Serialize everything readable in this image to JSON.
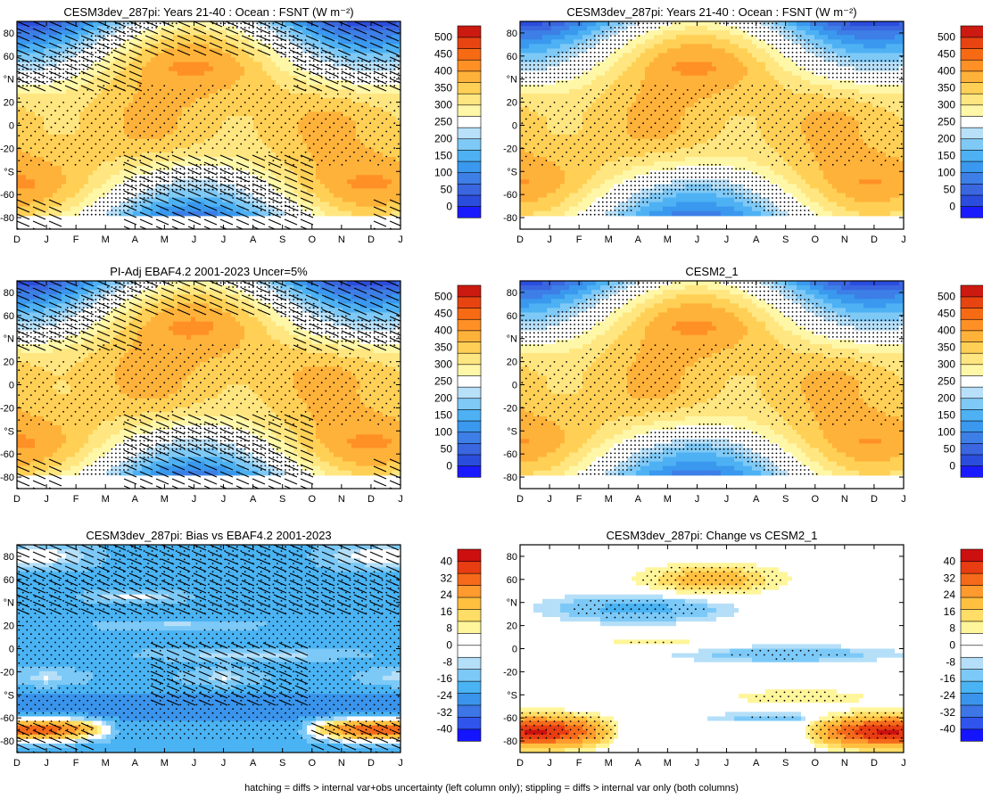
{
  "footer": "hatching = diffs > internal var+obs uncertainty (left column only); stippling = diffs > internal var only (both columns)",
  "chart_data": [
    {
      "type": "heatmap",
      "title": "CESM3dev_287pi: Years 21-40 : Ocean : FSNT (W m⁻²)",
      "x_labels": [
        "D",
        "J",
        "F",
        "M",
        "A",
        "M",
        "J",
        "J",
        "A",
        "S",
        "O",
        "N",
        "D",
        "J"
      ],
      "y_labels": [
        "80",
        "60",
        "°N",
        "20",
        "0",
        "-20",
        "°S",
        "-60",
        "-80"
      ],
      "colorbar_ticks": [
        "500",
        "450",
        "400",
        "350",
        "300",
        "250",
        "200",
        "150",
        "100",
        "50",
        "0"
      ],
      "colorbar_range": [
        0,
        525
      ],
      "field": "fsnt",
      "hatching": true,
      "stippling": true
    },
    {
      "type": "heatmap",
      "title": "CESM3dev_287pi: Years 21-40 : Ocean : FSNT (W m⁻²)",
      "x_labels": [
        "D",
        "J",
        "F",
        "M",
        "A",
        "M",
        "J",
        "J",
        "A",
        "S",
        "O",
        "N",
        "D",
        "J"
      ],
      "y_labels": [
        "80",
        "60",
        "°N",
        "20",
        "0",
        "-20",
        "°S",
        "-60",
        "-80"
      ],
      "colorbar_ticks": [
        "500",
        "450",
        "400",
        "350",
        "300",
        "250",
        "200",
        "150",
        "100",
        "50",
        "0"
      ],
      "colorbar_range": [
        0,
        525
      ],
      "field": "fsnt",
      "hatching": false,
      "stippling": true
    },
    {
      "type": "heatmap",
      "title": "PI-Adj EBAF4.2 2001-2023 Uncer=5%",
      "x_labels": [
        "D",
        "J",
        "F",
        "M",
        "A",
        "M",
        "J",
        "J",
        "A",
        "S",
        "O",
        "N",
        "D",
        "J"
      ],
      "y_labels": [
        "80",
        "60",
        "°N",
        "20",
        "0",
        "-20",
        "°S",
        "-60",
        "-80"
      ],
      "colorbar_ticks": [
        "500",
        "450",
        "400",
        "350",
        "300",
        "250",
        "200",
        "150",
        "100",
        "50",
        "0"
      ],
      "colorbar_range": [
        0,
        525
      ],
      "field": "fsnt",
      "hatching": true,
      "stippling": true
    },
    {
      "type": "heatmap",
      "title": "CESM2_1",
      "x_labels": [
        "D",
        "J",
        "F",
        "M",
        "A",
        "M",
        "J",
        "J",
        "A",
        "S",
        "O",
        "N",
        "D",
        "J"
      ],
      "y_labels": [
        "80",
        "60",
        "°N",
        "20",
        "0",
        "-20",
        "°S",
        "-60",
        "-80"
      ],
      "colorbar_ticks": [
        "500",
        "450",
        "400",
        "350",
        "300",
        "250",
        "200",
        "150",
        "100",
        "50",
        "0"
      ],
      "colorbar_range": [
        0,
        525
      ],
      "field": "fsnt",
      "hatching": false,
      "stippling": true
    },
    {
      "type": "heatmap",
      "title": "CESM3dev_287pi: Bias vs EBAF4.2 2001-2023",
      "x_labels": [
        "D",
        "J",
        "F",
        "M",
        "A",
        "M",
        "J",
        "J",
        "A",
        "S",
        "O",
        "N",
        "D",
        "J"
      ],
      "y_labels": [
        "80",
        "60",
        "°N",
        "20",
        "0",
        "-20",
        "°S",
        "-60",
        "-80"
      ],
      "colorbar_ticks": [
        "40",
        "32",
        "24",
        "16",
        "8",
        "0",
        "-8",
        "-16",
        "-24",
        "-32",
        "-40"
      ],
      "colorbar_range": [
        -44,
        44
      ],
      "field": "bias",
      "hatching": true,
      "stippling": true
    },
    {
      "type": "heatmap",
      "title": "CESM3dev_287pi: Change vs CESM2_1",
      "x_labels": [
        "D",
        "J",
        "F",
        "M",
        "A",
        "M",
        "J",
        "J",
        "A",
        "S",
        "O",
        "N",
        "D",
        "J"
      ],
      "y_labels": [
        "80",
        "60",
        "°N",
        "20",
        "0",
        "-20",
        "°S",
        "-60",
        "-80"
      ],
      "colorbar_ticks": [
        "40",
        "32",
        "24",
        "16",
        "8",
        "0",
        "-8",
        "-16",
        "-24",
        "-32",
        "-40"
      ],
      "colorbar_range": [
        -44,
        44
      ],
      "field": "change",
      "hatching": false,
      "stippling": true
    }
  ]
}
